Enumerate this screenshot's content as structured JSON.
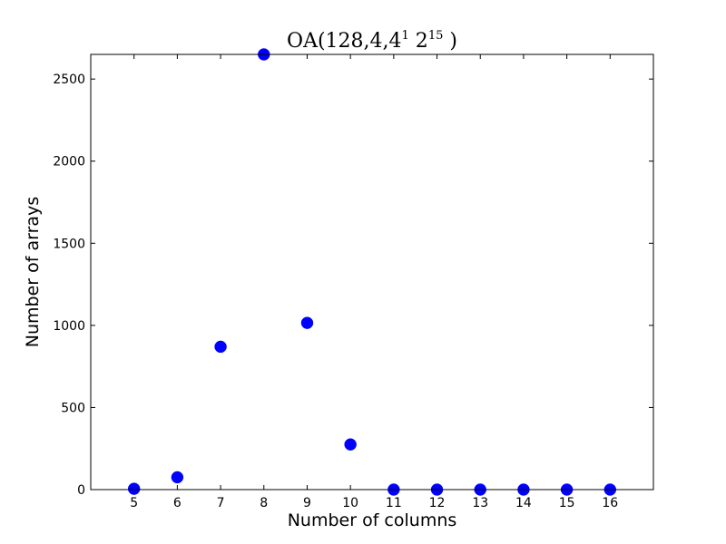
{
  "chart_data": {
    "type": "scatter",
    "title": {
      "prefix": "OA(128,4,4",
      "sup1": "1",
      "mid": " 2",
      "sup2": "15",
      "suffix": " )"
    },
    "xlabel": "Number of columns",
    "ylabel": "Number of arrays",
    "x": [
      5,
      6,
      7,
      8,
      9,
      10,
      11,
      12,
      13,
      14,
      15,
      16
    ],
    "y": [
      5,
      75,
      870,
      2650,
      1015,
      275,
      0,
      0,
      0,
      0,
      0,
      0
    ],
    "xlim": [
      4,
      17
    ],
    "ylim": [
      0,
      2650
    ],
    "xticks": [
      5,
      6,
      7,
      8,
      9,
      10,
      11,
      12,
      13,
      14,
      15,
      16
    ],
    "yticks": [
      0,
      500,
      1000,
      1500,
      2000,
      2500
    ],
    "marker_color": "#0000ff",
    "grid": false
  }
}
